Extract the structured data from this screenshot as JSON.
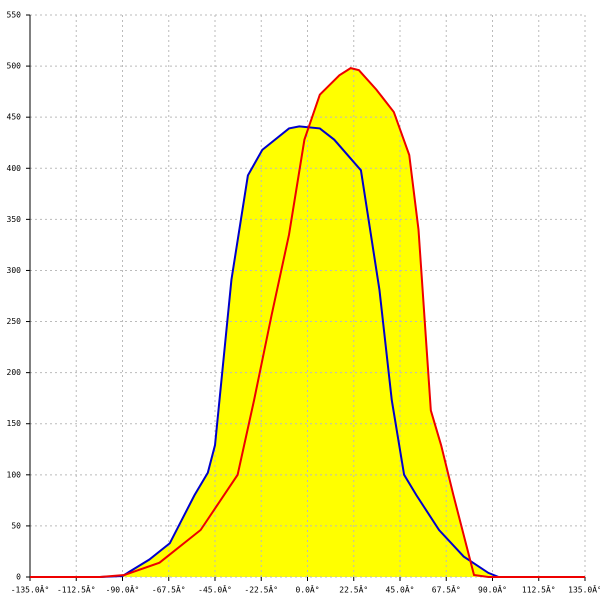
{
  "chart_data": {
    "type": "line",
    "fill_color": "#ffff00",
    "grid": true,
    "xlim": [
      -135,
      135
    ],
    "ylim": [
      0,
      550
    ],
    "xticks": [
      {
        "value": -135,
        "label": "-135.0Â°"
      },
      {
        "value": -112.5,
        "label": "-112.5Â°"
      },
      {
        "value": -90,
        "label": "-90.0Â°"
      },
      {
        "value": -67.5,
        "label": "-67.5Â°"
      },
      {
        "value": -45,
        "label": "-45.0Â°"
      },
      {
        "value": -22.5,
        "label": "-22.5Â°"
      },
      {
        "value": 0,
        "label": "0.0Â°"
      },
      {
        "value": 22.5,
        "label": "22.5Â°"
      },
      {
        "value": 45,
        "label": "45.0Â°"
      },
      {
        "value": 67.5,
        "label": "67.5Â°"
      },
      {
        "value": 90,
        "label": "90.0Â°"
      },
      {
        "value": 112.5,
        "label": "112.5Â°"
      },
      {
        "value": 135,
        "label": "135.0Â°"
      }
    ],
    "yticks": [
      0,
      50,
      100,
      150,
      200,
      250,
      300,
      350,
      400,
      450,
      500,
      550
    ],
    "series": [
      {
        "color": "#0000cc",
        "x": [
          -101,
          -90,
          -77,
          -67,
          -55,
          -48.5,
          -45,
          -37,
          -29,
          -22,
          -9,
          -4,
          6,
          13,
          26,
          35,
          41,
          47,
          53,
          64,
          76,
          88,
          93
        ],
        "values": [
          0,
          1,
          17,
          33,
          80,
          102,
          129,
          291,
          393,
          418,
          439,
          441,
          439,
          428,
          398,
          281,
          173,
          100,
          80,
          46,
          20,
          4,
          0
        ]
      },
      {
        "color": "#ee0000",
        "x": [
          -135,
          -101,
          -89,
          -72,
          -52,
          -34,
          -26,
          -17.5,
          -9,
          -1.5,
          6,
          15.5,
          21,
          25,
          33.5,
          42,
          49.5,
          54,
          60,
          65,
          71,
          81,
          88,
          100,
          135
        ],
        "values": [
          0,
          0,
          2,
          14,
          46,
          100,
          173,
          256,
          335,
          428,
          472,
          491,
          498,
          496,
          477,
          455,
          413,
          340,
          163,
          129,
          80,
          2,
          0,
          0,
          0
        ]
      }
    ]
  }
}
